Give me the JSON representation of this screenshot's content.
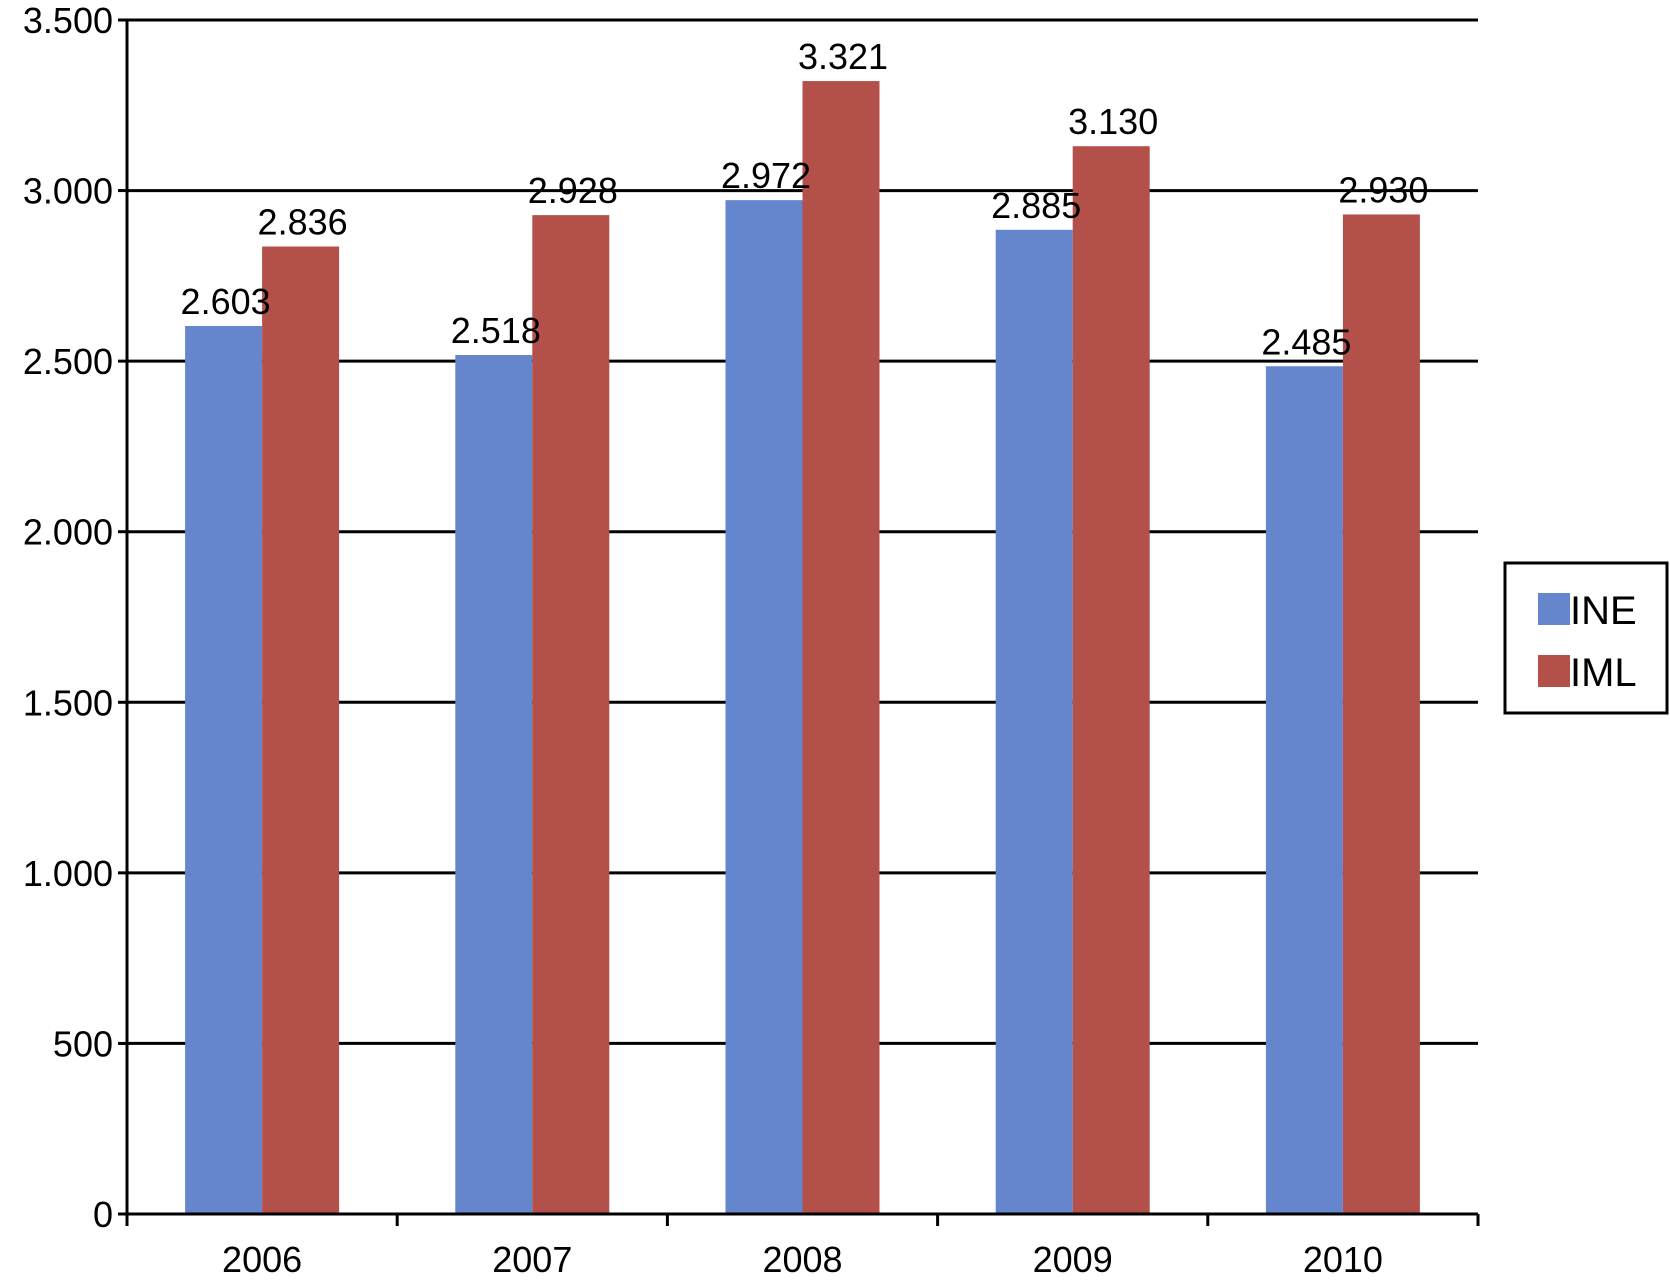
{
  "chart_data": {
    "type": "bar",
    "categories": [
      "2006",
      "2007",
      "2008",
      "2009",
      "2010"
    ],
    "series": [
      {
        "name": "INE",
        "color": "#6585CC",
        "values": [
          2603,
          2518,
          2972,
          2885,
          2485
        ],
        "labels": [
          "2.603",
          "2.518",
          "2.972",
          "2.885",
          "2.485"
        ]
      },
      {
        "name": "IML",
        "color": "#B4504A",
        "values": [
          2836,
          2928,
          3321,
          3130,
          2930
        ],
        "labels": [
          "2.836",
          "2.928",
          "3.321",
          "3.130",
          "2.930"
        ]
      }
    ],
    "ylim": [
      0,
      3500
    ],
    "yticks": [
      0,
      500,
      1000,
      1500,
      2000,
      2500,
      3000,
      3500
    ],
    "ytick_labels": [
      "0",
      "500",
      "1.000",
      "1.500",
      "2.000",
      "2.500",
      "3.000",
      "3.500"
    ],
    "title": "",
    "xlabel": "",
    "ylabel": "",
    "grid": true,
    "legend_position": "right"
  }
}
